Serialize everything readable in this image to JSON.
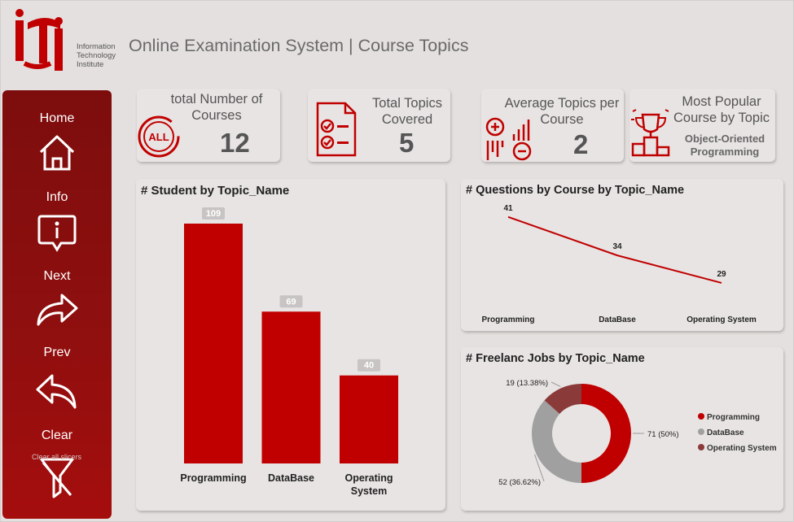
{
  "header": {
    "logo_letters": "iTi",
    "logo_line1": "Information",
    "logo_line2": "Technology",
    "logo_line3": "Institute",
    "title": "Online Examination System | Course Topics"
  },
  "sidebar": {
    "items": [
      {
        "label": "Home",
        "icon": "home-icon"
      },
      {
        "label": "Info",
        "icon": "info-icon"
      },
      {
        "label": "Next",
        "icon": "arrow-right-icon"
      },
      {
        "label": "Prev",
        "icon": "arrow-left-icon"
      },
      {
        "label": "Clear",
        "icon": "filter-clear-icon"
      }
    ],
    "clear_tooltip": "Clear all slicers"
  },
  "kpis": {
    "total_courses": {
      "title": "total Number of Courses",
      "value": "12",
      "icon": "all-icon"
    },
    "total_topics": {
      "title": "Total Topics Covered",
      "value": "5",
      "icon": "checklist-icon"
    },
    "avg_topics": {
      "title": "Average Topics per Course",
      "value": "2",
      "icon": "calculator-icon"
    },
    "popular_topic": {
      "title": "Most Popular Course by Topic",
      "value": "Object-Oriented Programming",
      "icon": "trophy-icon"
    }
  },
  "colors": {
    "accent": "#c00000",
    "grey": "#a0a0a0",
    "dark_red": "#8b3a3a",
    "sidebar": "#8a0e0e"
  },
  "chart_data": [
    {
      "type": "bar",
      "title": "# Student by Topic_Name",
      "categories": [
        "Programming",
        "DataBase",
        "Operating System"
      ],
      "values": [
        109,
        69,
        40
      ],
      "ylim": [
        0,
        109
      ]
    },
    {
      "type": "line",
      "title": "# Questions by Course by Topic_Name",
      "categories": [
        "Programming",
        "DataBase",
        "Operating System"
      ],
      "values": [
        41,
        34,
        29
      ]
    },
    {
      "type": "pie",
      "title": "# Freelanc Jobs by Topic_Name",
      "categories": [
        "Programming",
        "DataBase",
        "Operating System"
      ],
      "values": [
        71,
        52,
        19
      ],
      "labels": [
        "71 (50%)",
        "52 (36.62%)",
        "19 (13.38%)"
      ],
      "colors": [
        "#c00000",
        "#a0a0a0",
        "#8b3a3a"
      ],
      "legend": "right"
    }
  ]
}
